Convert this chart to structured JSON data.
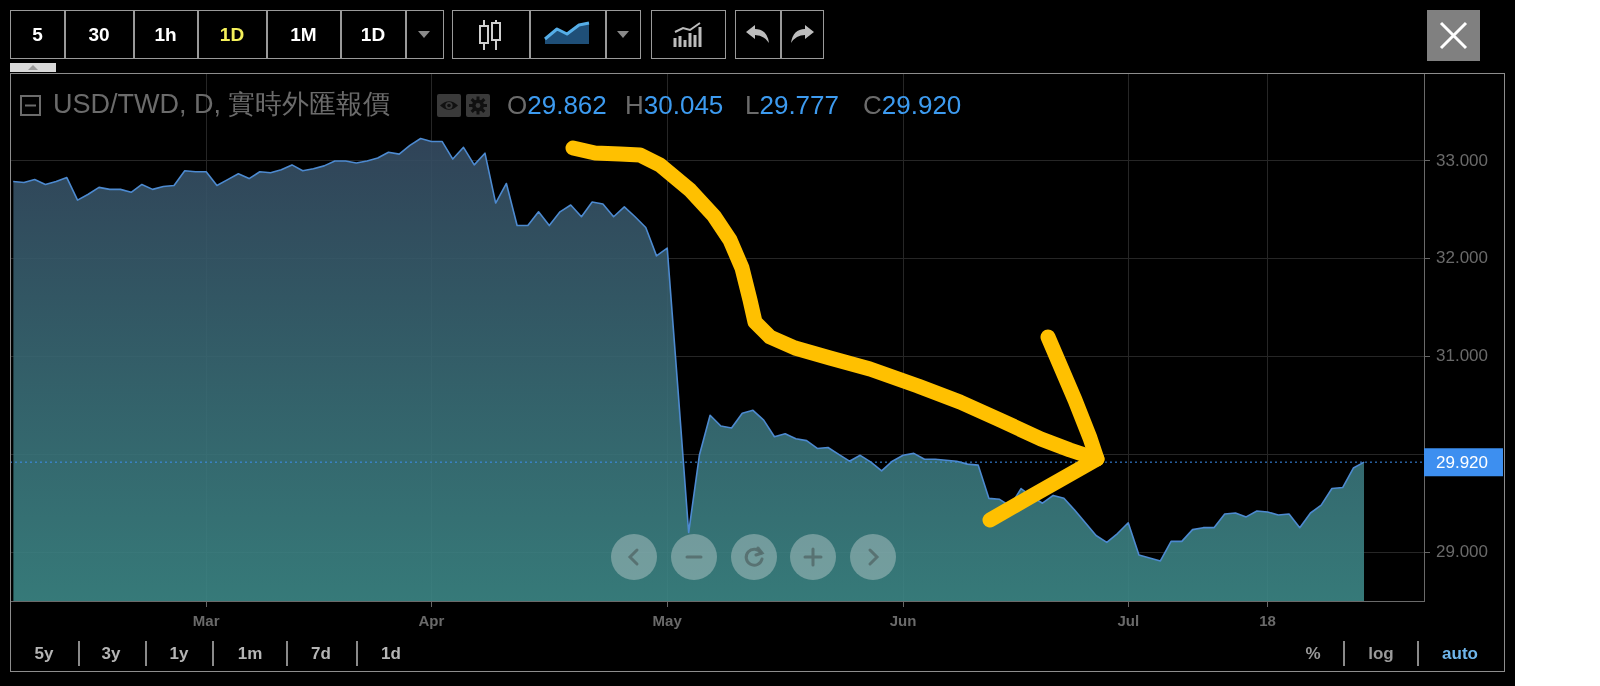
{
  "chart_data": {
    "type": "area",
    "title": "USD/TWD, D, 實時外匯報價",
    "categories": [
      null,
      null,
      null,
      null,
      null,
      null,
      null,
      null,
      null,
      null,
      null,
      null,
      null,
      null,
      null,
      null,
      null,
      null,
      "Mar",
      null,
      null,
      null,
      null,
      null,
      null,
      null,
      null,
      null,
      null,
      null,
      null,
      null,
      null,
      null,
      null,
      null,
      null,
      null,
      null,
      "Apr",
      null,
      null,
      null,
      null,
      null,
      null,
      null,
      null,
      null,
      null,
      null,
      null,
      null,
      null,
      null,
      null,
      null,
      null,
      null,
      null,
      null,
      "May",
      null,
      null,
      null,
      null,
      null,
      null,
      null,
      null,
      null,
      null,
      null,
      null,
      null,
      null,
      null,
      null,
      null,
      null,
      null,
      null,
      null,
      "Jun",
      null,
      null,
      null,
      null,
      null,
      null,
      null,
      null,
      null,
      null,
      null,
      null,
      null,
      null,
      null,
      null,
      null,
      null,
      null,
      null,
      "Jul",
      null,
      null,
      null,
      null,
      null,
      null,
      null,
      null,
      null,
      null,
      null,
      null,
      "18",
      null,
      null,
      null,
      null,
      null,
      null,
      null,
      null,
      null
    ],
    "values": [
      32.79,
      32.78,
      32.81,
      32.76,
      32.79,
      32.83,
      32.6,
      32.66,
      32.73,
      32.71,
      32.71,
      32.68,
      32.76,
      32.71,
      32.74,
      32.75,
      32.9,
      32.89,
      32.89,
      32.75,
      32.81,
      32.87,
      32.82,
      32.89,
      32.88,
      32.91,
      32.96,
      32.9,
      32.92,
      32.95,
      33.0,
      33.0,
      32.98,
      33.0,
      33.03,
      33.09,
      33.07,
      33.16,
      33.23,
      33.2,
      33.2,
      33.02,
      33.14,
      32.96,
      33.08,
      32.57,
      32.77,
      32.34,
      32.34,
      32.48,
      32.34,
      32.48,
      32.55,
      32.43,
      32.58,
      32.56,
      32.43,
      32.53,
      32.43,
      32.32,
      32.03,
      32.11,
      30.67,
      29.2,
      29.99,
      30.4,
      30.29,
      30.27,
      30.42,
      30.45,
      30.35,
      30.18,
      30.21,
      30.16,
      30.14,
      30.06,
      30.07,
      30.0,
      29.93,
      29.99,
      29.92,
      29.83,
      29.93,
      29.99,
      30.01,
      29.95,
      29.95,
      29.94,
      29.93,
      29.9,
      29.89,
      29.55,
      29.54,
      29.47,
      29.65,
      29.57,
      29.5,
      29.58,
      29.55,
      29.43,
      29.3,
      29.17,
      29.1,
      29.19,
      29.3,
      28.97,
      28.94,
      28.91,
      29.11,
      29.11,
      29.23,
      29.25,
      29.25,
      29.39,
      29.4,
      29.36,
      29.42,
      29.41,
      29.38,
      29.39,
      29.25,
      29.4,
      29.48,
      29.65,
      29.66,
      29.86,
      29.92
    ],
    "color": "#4d8ad0",
    "marker": "none",
    "grid": true,
    "ylim": [
      28.5,
      33.9
    ],
    "yticks": [
      {
        "value": 29,
        "label": "29.000"
      },
      {
        "value": 30,
        "label": null
      },
      {
        "value": 31,
        "label": "31.000"
      },
      {
        "value": 32,
        "label": "32.000"
      },
      {
        "value": 33,
        "label": "33.000"
      }
    ],
    "ref_lines": [
      {
        "axis": "y",
        "value": 29.92,
        "label": "29.920",
        "color": "#3d8ff0",
        "line_style": "dotted"
      }
    ],
    "annotations": [
      "O29.862",
      "H30.045",
      "L29.777",
      "C29.920",
      "5",
      "30",
      "1h",
      "1D",
      "1M",
      "1D",
      "5y",
      "3y",
      "1y",
      "1m",
      "7d",
      "1d",
      "%",
      "log",
      "auto"
    ]
  }
}
